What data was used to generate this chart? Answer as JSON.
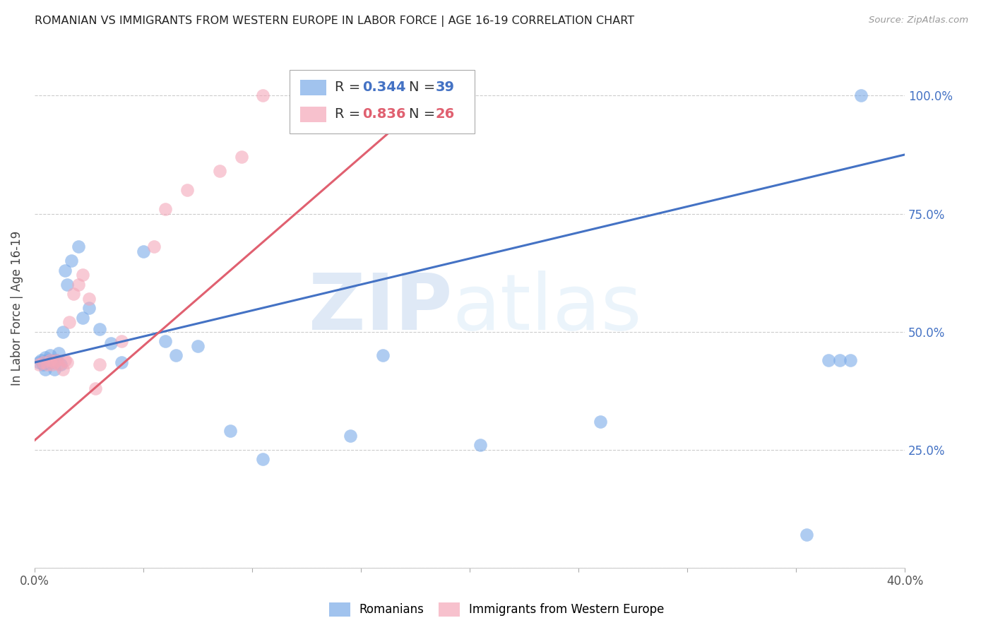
{
  "title": "ROMANIAN VS IMMIGRANTS FROM WESTERN EUROPE IN LABOR FORCE | AGE 16-19 CORRELATION CHART",
  "source": "Source: ZipAtlas.com",
  "ylabel": "In Labor Force | Age 16-19",
  "xlim": [
    0.0,
    0.4
  ],
  "ylim": [
    0.0,
    1.1
  ],
  "xticks": [
    0.0,
    0.05,
    0.1,
    0.15,
    0.2,
    0.25,
    0.3,
    0.35,
    0.4
  ],
  "xticklabels": [
    "0.0%",
    "",
    "",
    "",
    "",
    "",
    "",
    "",
    "40.0%"
  ],
  "yticks": [
    0.0,
    0.25,
    0.5,
    0.75,
    1.0
  ],
  "yticklabels": [
    "",
    "25.0%",
    "50.0%",
    "75.0%",
    "100.0%"
  ],
  "blue_R": 0.344,
  "blue_N": 39,
  "pink_R": 0.836,
  "pink_N": 26,
  "blue_color": "#7aaae8",
  "pink_color": "#f4a7b9",
  "blue_line_color": "#4472c4",
  "pink_line_color": "#e06070",
  "watermark_zip": "ZIP",
  "watermark_atlas": "atlas",
  "blue_line_x0": 0.0,
  "blue_line_y0": 0.435,
  "blue_line_x1": 0.4,
  "blue_line_y1": 0.875,
  "pink_line_x0": 0.0,
  "pink_line_y0": 0.27,
  "pink_line_x1": 0.195,
  "pink_line_y1": 1.05,
  "blue_x": [
    0.002,
    0.003,
    0.004,
    0.005,
    0.005,
    0.006,
    0.006,
    0.007,
    0.008,
    0.008,
    0.009,
    0.01,
    0.011,
    0.012,
    0.013,
    0.014,
    0.015,
    0.017,
    0.02,
    0.022,
    0.025,
    0.03,
    0.035,
    0.04,
    0.05,
    0.06,
    0.065,
    0.075,
    0.09,
    0.105,
    0.145,
    0.16,
    0.205,
    0.26,
    0.355,
    0.365,
    0.37,
    0.375,
    0.38
  ],
  "blue_y": [
    0.435,
    0.44,
    0.43,
    0.42,
    0.445,
    0.435,
    0.44,
    0.45,
    0.44,
    0.435,
    0.42,
    0.44,
    0.455,
    0.43,
    0.5,
    0.63,
    0.6,
    0.65,
    0.68,
    0.53,
    0.55,
    0.505,
    0.475,
    0.435,
    0.67,
    0.48,
    0.45,
    0.47,
    0.29,
    0.23,
    0.28,
    0.45,
    0.26,
    0.31,
    0.07,
    0.44,
    0.44,
    0.44,
    1.0
  ],
  "pink_x": [
    0.002,
    0.004,
    0.006,
    0.007,
    0.008,
    0.009,
    0.01,
    0.011,
    0.013,
    0.014,
    0.015,
    0.016,
    0.018,
    0.02,
    0.022,
    0.025,
    0.028,
    0.03,
    0.04,
    0.055,
    0.06,
    0.07,
    0.085,
    0.095,
    0.105,
    0.12
  ],
  "pink_y": [
    0.43,
    0.435,
    0.43,
    0.44,
    0.43,
    0.435,
    0.44,
    0.43,
    0.42,
    0.44,
    0.435,
    0.52,
    0.58,
    0.6,
    0.62,
    0.57,
    0.38,
    0.43,
    0.48,
    0.68,
    0.76,
    0.8,
    0.84,
    0.87,
    1.0,
    1.0
  ]
}
